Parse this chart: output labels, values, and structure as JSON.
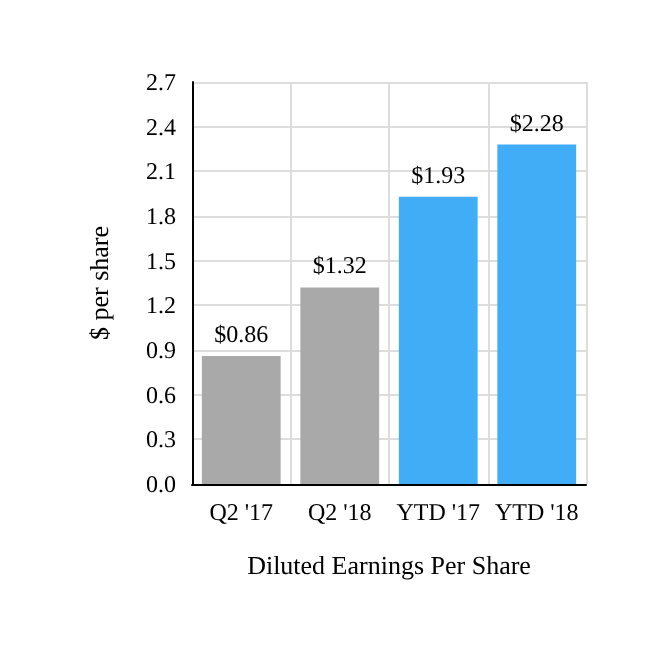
{
  "chart_data": {
    "type": "bar",
    "xlabel": "Diluted Earnings Per Share",
    "ylabel": "$ per share",
    "categories": [
      "Q2 '17",
      "Q2 '18",
      "YTD '17",
      "YTD '18"
    ],
    "values": [
      0.86,
      1.32,
      1.93,
      2.28
    ],
    "colors": [
      "#a9a9a9",
      "#a9a9a9",
      "#42adf7",
      "#42adf7"
    ],
    "value_labels": [
      "$0.86",
      "$1.32",
      "$1.93",
      "$2.28"
    ],
    "ylim": [
      0,
      2.7
    ],
    "yticks": [
      {
        "value": 0,
        "label": "0.0"
      },
      {
        "value": 0.3,
        "label": "0.3"
      },
      {
        "value": 0.6,
        "label": "0.6"
      },
      {
        "value": 0.9,
        "label": "0.9"
      },
      {
        "value": 1.2,
        "label": "1.2"
      },
      {
        "value": 1.5,
        "label": "1.5"
      },
      {
        "value": 1.8,
        "label": "1.8"
      },
      {
        "value": 2.1,
        "label": "2.1"
      },
      {
        "value": 2.4,
        "label": "2.4"
      },
      {
        "value": 2.7,
        "label": "2.7"
      }
    ],
    "grid": true
  }
}
